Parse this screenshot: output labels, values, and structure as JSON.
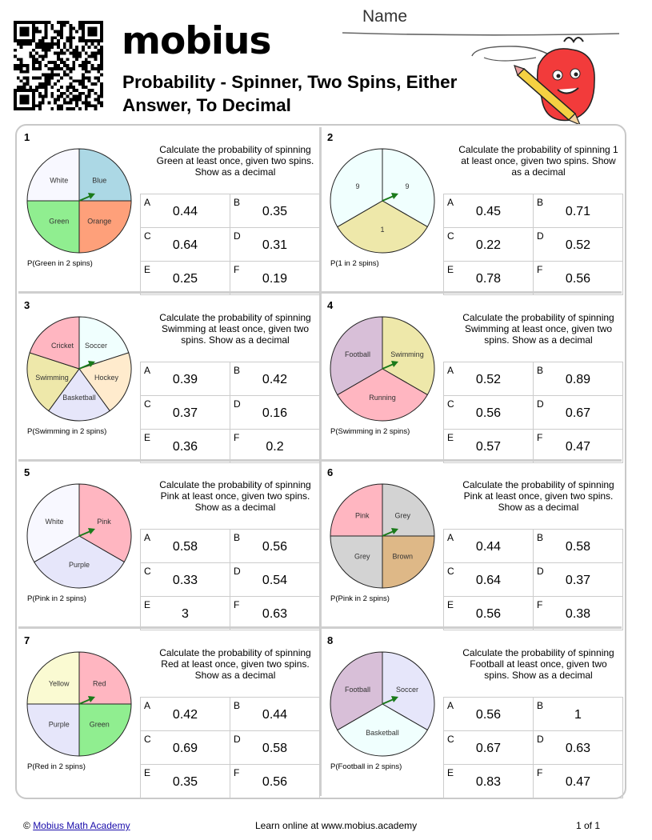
{
  "header": {
    "logo": "mobius",
    "title": "Probability - Spinner, Two Spins, Either Answer, To Decimal",
    "name_label": "Name"
  },
  "problems": [
    {
      "number": "1",
      "question": "Calculate the probability of spinning Green at least once, given two spins. Show as a decimal",
      "prob_label": "P(Green in 2 spins)",
      "sectors": [
        {
          "label": "Blue",
          "fraction": 0.25,
          "color": "#acd8e5"
        },
        {
          "label": "Orange",
          "fraction": 0.25,
          "color": "#fea07a"
        },
        {
          "label": "Green",
          "fraction": 0.25,
          "color": "#90ee90"
        },
        {
          "label": "White",
          "fraction": 0.25,
          "color": "#f8f8ff"
        }
      ],
      "options": [
        {
          "letter": "A",
          "value": "0.44"
        },
        {
          "letter": "B",
          "value": "0.35"
        },
        {
          "letter": "C",
          "value": "0.64"
        },
        {
          "letter": "D",
          "value": "0.31"
        },
        {
          "letter": "E",
          "value": "0.25"
        },
        {
          "letter": "F",
          "value": "0.19"
        }
      ]
    },
    {
      "number": "2",
      "question": "Calculate the probability of spinning 1 at least once, given two spins. Show as a decimal",
      "prob_label": "P(1 in 2 spins)",
      "sectors": [
        {
          "label": "9",
          "fraction": 0.3333,
          "color": "#f0fffe"
        },
        {
          "label": "1",
          "fraction": 0.3333,
          "color": "#eee8aa"
        },
        {
          "label": "9",
          "fraction": 0.3334,
          "color": "#f0fffe"
        }
      ],
      "options": [
        {
          "letter": "A",
          "value": "0.45"
        },
        {
          "letter": "B",
          "value": "0.71"
        },
        {
          "letter": "C",
          "value": "0.22"
        },
        {
          "letter": "D",
          "value": "0.52"
        },
        {
          "letter": "E",
          "value": "0.78"
        },
        {
          "letter": "F",
          "value": "0.56"
        }
      ]
    },
    {
      "number": "3",
      "question": "Calculate the probability of spinning Swimming at least once, given two spins. Show as a decimal",
      "prob_label": "P(Swimming in 2 spins)",
      "sectors": [
        {
          "label": "Soccer",
          "fraction": 0.2,
          "color": "#f0fffe"
        },
        {
          "label": "Hockey",
          "fraction": 0.2,
          "color": "#ffebcd"
        },
        {
          "label": "Basketball",
          "fraction": 0.2,
          "color": "#e6e6fa"
        },
        {
          "label": "Swimming",
          "fraction": 0.2,
          "color": "#eee8aa"
        },
        {
          "label": "Cricket",
          "fraction": 0.2,
          "color": "#ffb6c1"
        }
      ],
      "options": [
        {
          "letter": "A",
          "value": "0.39"
        },
        {
          "letter": "B",
          "value": "0.42"
        },
        {
          "letter": "C",
          "value": "0.37"
        },
        {
          "letter": "D",
          "value": "0.16"
        },
        {
          "letter": "E",
          "value": "0.36"
        },
        {
          "letter": "F",
          "value": "0.2"
        }
      ]
    },
    {
      "number": "4",
      "question": "Calculate the probability of spinning Swimming at least once, given two spins. Show as a decimal",
      "prob_label": "P(Swimming in 2 spins)",
      "sectors": [
        {
          "label": "Swimming",
          "fraction": 0.3333,
          "color": "#eee8aa"
        },
        {
          "label": "Running",
          "fraction": 0.3333,
          "color": "#ffb6c1"
        },
        {
          "label": "Football",
          "fraction": 0.3334,
          "color": "#d8bfd8"
        }
      ],
      "options": [
        {
          "letter": "A",
          "value": "0.52"
        },
        {
          "letter": "B",
          "value": "0.89"
        },
        {
          "letter": "C",
          "value": "0.56"
        },
        {
          "letter": "D",
          "value": "0.67"
        },
        {
          "letter": "E",
          "value": "0.57"
        },
        {
          "letter": "F",
          "value": "0.47"
        }
      ]
    },
    {
      "number": "5",
      "question": "Calculate the probability of spinning Pink at least once, given two spins. Show as a decimal",
      "prob_label": "P(Pink in 2 spins)",
      "sectors": [
        {
          "label": "Pink",
          "fraction": 0.3333,
          "color": "#ffb6c1"
        },
        {
          "label": "Purple",
          "fraction": 0.3333,
          "color": "#e6e6fa"
        },
        {
          "label": "White",
          "fraction": 0.3334,
          "color": "#f8f8ff"
        }
      ],
      "options": [
        {
          "letter": "A",
          "value": "0.58"
        },
        {
          "letter": "B",
          "value": "0.56"
        },
        {
          "letter": "C",
          "value": "0.33"
        },
        {
          "letter": "D",
          "value": "0.54"
        },
        {
          "letter": "E",
          "value": "3"
        },
        {
          "letter": "F",
          "value": "0.63"
        }
      ]
    },
    {
      "number": "6",
      "question": "Calculate the probability of spinning Pink at least once, given two spins. Show as a decimal",
      "prob_label": "P(Pink in 2 spins)",
      "sectors": [
        {
          "label": "Grey",
          "fraction": 0.25,
          "color": "#d3d3d3"
        },
        {
          "label": "Brown",
          "fraction": 0.25,
          "color": "#deb887"
        },
        {
          "label": "Grey",
          "fraction": 0.25,
          "color": "#d3d3d3"
        },
        {
          "label": "Pink",
          "fraction": 0.25,
          "color": "#ffb6c1"
        }
      ],
      "options": [
        {
          "letter": "A",
          "value": "0.44"
        },
        {
          "letter": "B",
          "value": "0.58"
        },
        {
          "letter": "C",
          "value": "0.64"
        },
        {
          "letter": "D",
          "value": "0.37"
        },
        {
          "letter": "E",
          "value": "0.56"
        },
        {
          "letter": "F",
          "value": "0.38"
        }
      ]
    },
    {
      "number": "7",
      "question": "Calculate the probability of spinning Red at least once, given two spins. Show as a decimal",
      "prob_label": "P(Red in 2 spins)",
      "sectors": [
        {
          "label": "Red",
          "fraction": 0.25,
          "color": "#ffb6c1"
        },
        {
          "label": "Green",
          "fraction": 0.25,
          "color": "#90ee90"
        },
        {
          "label": "Purple",
          "fraction": 0.25,
          "color": "#e6e6fa"
        },
        {
          "label": "Yellow",
          "fraction": 0.25,
          "color": "#fafad2"
        }
      ],
      "options": [
        {
          "letter": "A",
          "value": "0.42"
        },
        {
          "letter": "B",
          "value": "0.44"
        },
        {
          "letter": "C",
          "value": "0.69"
        },
        {
          "letter": "D",
          "value": "0.58"
        },
        {
          "letter": "E",
          "value": "0.35"
        },
        {
          "letter": "F",
          "value": "0.56"
        }
      ]
    },
    {
      "number": "8",
      "question": "Calculate the probability of spinning Football at least once, given two spins. Show as a decimal",
      "prob_label": "P(Football in 2 spins)",
      "sectors": [
        {
          "label": "Soccer",
          "fraction": 0.3333,
          "color": "#e6e6fa"
        },
        {
          "label": "Basketball",
          "fraction": 0.3333,
          "color": "#f0fffe"
        },
        {
          "label": "Football",
          "fraction": 0.3334,
          "color": "#d8bfd8"
        }
      ],
      "options": [
        {
          "letter": "A",
          "value": "0.56"
        },
        {
          "letter": "B",
          "value": "1"
        },
        {
          "letter": "C",
          "value": "0.67"
        },
        {
          "letter": "D",
          "value": "0.63"
        },
        {
          "letter": "E",
          "value": "0.83"
        },
        {
          "letter": "F",
          "value": "0.47"
        }
      ]
    }
  ],
  "footer": {
    "copyright_symbol": "©",
    "link_text": "Mobius Math Academy",
    "center_text": "Learn online at www.mobius.academy",
    "page_text": "1 of 1"
  }
}
